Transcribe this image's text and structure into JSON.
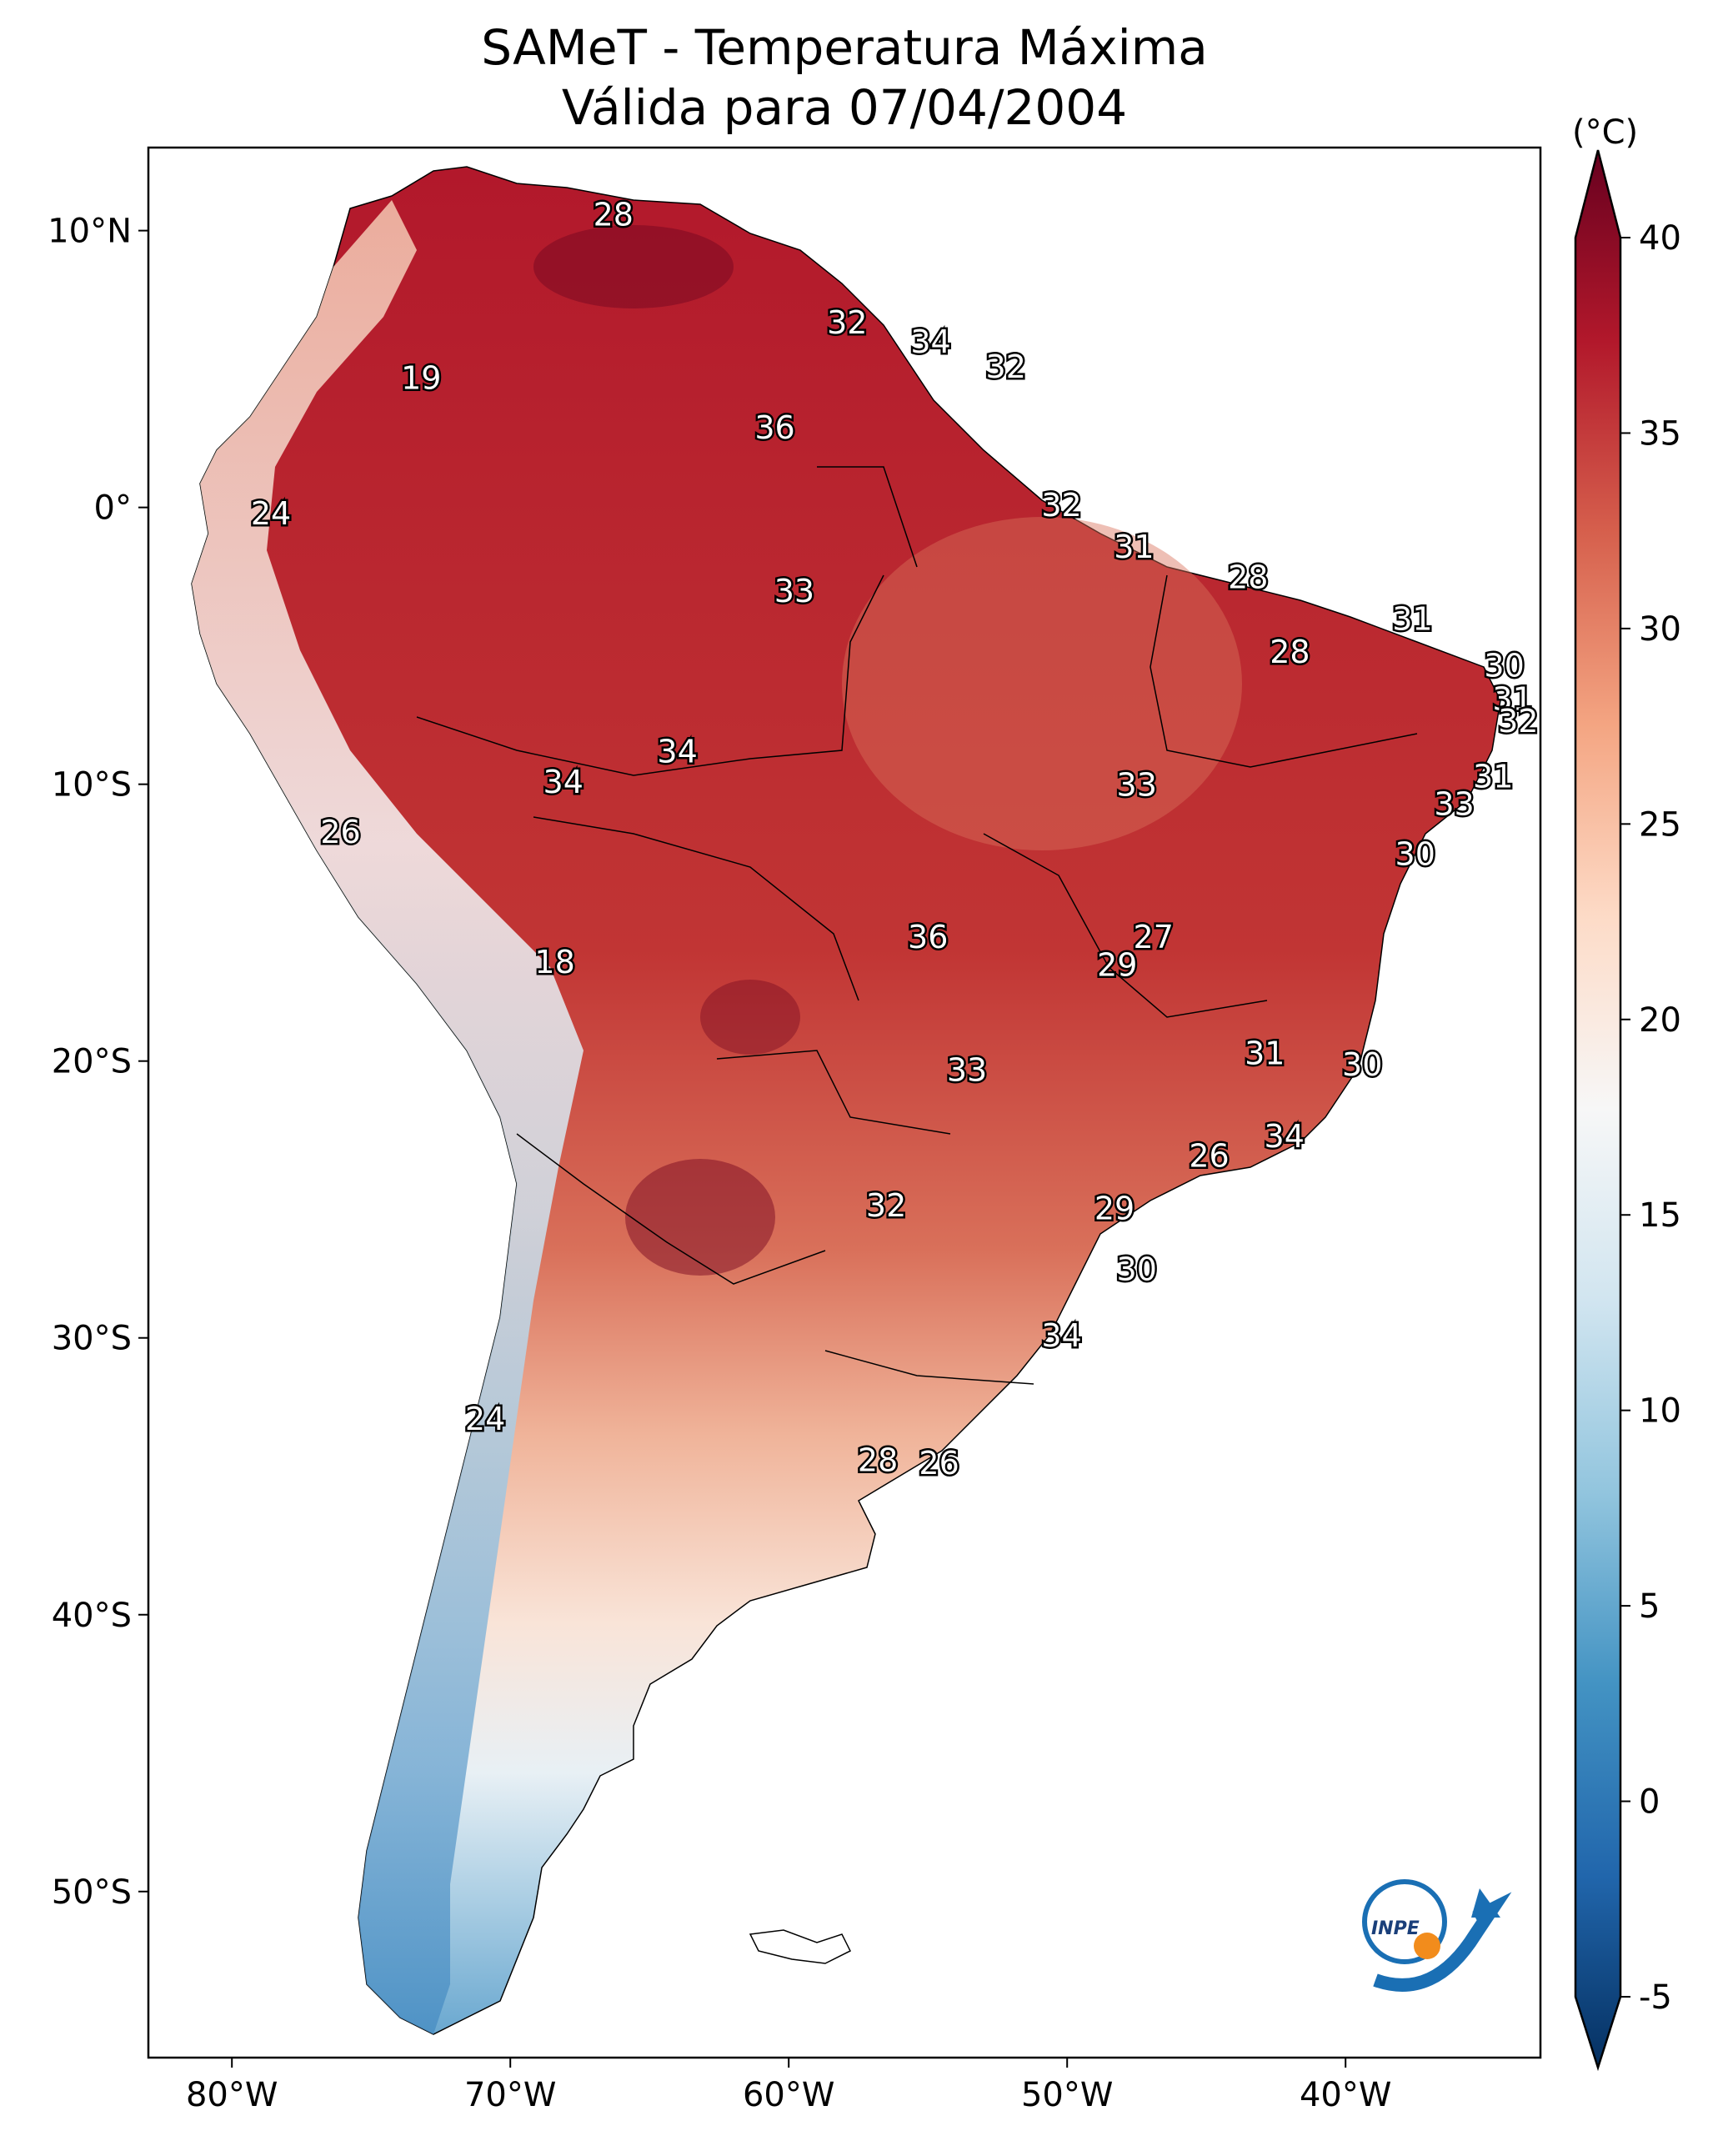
{
  "title_line1": "SAMeT - Temperatura Máxima",
  "title_line2": "Válida para 07/04/2004",
  "colorbar": {
    "unit": "(°C)",
    "ticks": [
      "40",
      "35",
      "30",
      "25",
      "20",
      "15",
      "10",
      "5",
      "0",
      "-5"
    ],
    "range": [
      -5,
      40
    ],
    "colors": [
      "#053061",
      "#2166ac",
      "#4393c3",
      "#92c5de",
      "#d1e5f0",
      "#f7f7f7",
      "#fddbc7",
      "#f4a582",
      "#d6604d",
      "#b2182b",
      "#67001f"
    ]
  },
  "axes": {
    "lon_labels": [
      "80°W",
      "70°W",
      "60°W",
      "50°W",
      "40°W"
    ],
    "lat_labels": [
      "10°N",
      "0°",
      "10°S",
      "20°S",
      "30°S",
      "40°S",
      "50°S"
    ]
  },
  "contour_labels": [
    {
      "text": "28",
      "lon": -66.3,
      "lat": 10.5
    },
    {
      "text": "32",
      "lon": -57.9,
      "lat": 6.6
    },
    {
      "text": "34",
      "lon": -54.9,
      "lat": 5.9
    },
    {
      "text": "32",
      "lon": -52.2,
      "lat": 5.0
    },
    {
      "text": "19",
      "lon": -73.2,
      "lat": 4.6
    },
    {
      "text": "36",
      "lon": -60.5,
      "lat": 2.8
    },
    {
      "text": "32",
      "lon": -50.2,
      "lat": 0.0
    },
    {
      "text": "24",
      "lon": -78.6,
      "lat": -0.3
    },
    {
      "text": "31",
      "lon": -47.6,
      "lat": -1.5
    },
    {
      "text": "33",
      "lon": -59.8,
      "lat": -3.1
    },
    {
      "text": "28",
      "lon": -43.5,
      "lat": -2.6
    },
    {
      "text": "31",
      "lon": -37.6,
      "lat": -4.1
    },
    {
      "text": "28",
      "lon": -42.0,
      "lat": -5.3
    },
    {
      "text": "30",
      "lon": -34.3,
      "lat": -5.8
    },
    {
      "text": "31",
      "lon": -34.0,
      "lat": -7.0
    },
    {
      "text": "32",
      "lon": -33.8,
      "lat": -7.8
    },
    {
      "text": "34",
      "lon": -64.0,
      "lat": -8.9
    },
    {
      "text": "31",
      "lon": -34.7,
      "lat": -9.8
    },
    {
      "text": "34",
      "lon": -68.1,
      "lat": -10.0
    },
    {
      "text": "33",
      "lon": -47.5,
      "lat": -10.1
    },
    {
      "text": "33",
      "lon": -36.1,
      "lat": -10.8
    },
    {
      "text": "26",
      "lon": -76.1,
      "lat": -11.8
    },
    {
      "text": "30",
      "lon": -37.5,
      "lat": -12.6
    },
    {
      "text": "36",
      "lon": -55.0,
      "lat": -15.6
    },
    {
      "text": "27",
      "lon": -46.9,
      "lat": -15.6
    },
    {
      "text": "29",
      "lon": -48.2,
      "lat": -16.6
    },
    {
      "text": "18",
      "lon": -68.4,
      "lat": -16.5
    },
    {
      "text": "31",
      "lon": -42.9,
      "lat": -19.8
    },
    {
      "text": "30",
      "lon": -39.4,
      "lat": -20.2
    },
    {
      "text": "33",
      "lon": -53.6,
      "lat": -20.4
    },
    {
      "text": "34",
      "lon": -42.2,
      "lat": -22.8
    },
    {
      "text": "26",
      "lon": -44.9,
      "lat": -23.5
    },
    {
      "text": "32",
      "lon": -56.5,
      "lat": -25.3
    },
    {
      "text": "29",
      "lon": -48.3,
      "lat": -25.4
    },
    {
      "text": "30",
      "lon": -47.5,
      "lat": -27.6
    },
    {
      "text": "34",
      "lon": -50.2,
      "lat": -30.0
    },
    {
      "text": "24",
      "lon": -70.9,
      "lat": -33.0
    },
    {
      "text": "28",
      "lon": -56.8,
      "lat": -34.5
    },
    {
      "text": "26",
      "lon": -54.6,
      "lat": -34.6
    }
  ]
}
